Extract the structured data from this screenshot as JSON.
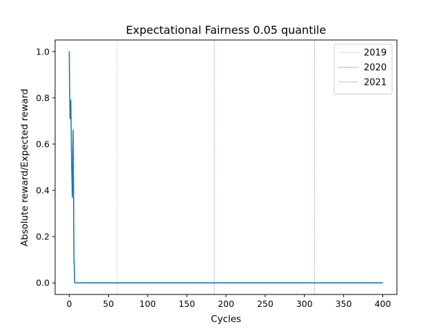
{
  "chart_data": {
    "type": "line",
    "title": "Expectational Fairness 0.05 quantile",
    "xlabel": "Cycles",
    "ylabel": "Absolute reward/Expected reward",
    "xlim": [
      -18,
      418
    ],
    "ylim": [
      -0.05,
      1.05
    ],
    "xticks": [
      0,
      50,
      100,
      150,
      200,
      250,
      300,
      350,
      400
    ],
    "yticks": [
      0.0,
      0.2,
      0.4,
      0.6,
      0.8,
      1.0
    ],
    "xtick_labels": [
      "0",
      "50",
      "100",
      "150",
      "200",
      "250",
      "300",
      "350",
      "400"
    ],
    "ytick_labels": [
      "0.0",
      "0.2",
      "0.4",
      "0.6",
      "0.8",
      "1.0"
    ],
    "grid": false,
    "legend_position": "top-right",
    "series": [
      {
        "color": "#1f77b4",
        "x": [
          0,
          1,
          2,
          3,
          4,
          5,
          6,
          7,
          400
        ],
        "y": [
          1.0,
          0.71,
          0.79,
          0.52,
          0.37,
          0.66,
          0.12,
          0.0,
          0.0
        ]
      }
    ],
    "vlines": [
      {
        "label": "2019",
        "x": 61,
        "color": "#8fb3b3"
      },
      {
        "label": "2020",
        "x": 185,
        "color": "#4a4af0"
      },
      {
        "label": "2021",
        "x": 313,
        "color": "#3d8f3d"
      }
    ]
  }
}
